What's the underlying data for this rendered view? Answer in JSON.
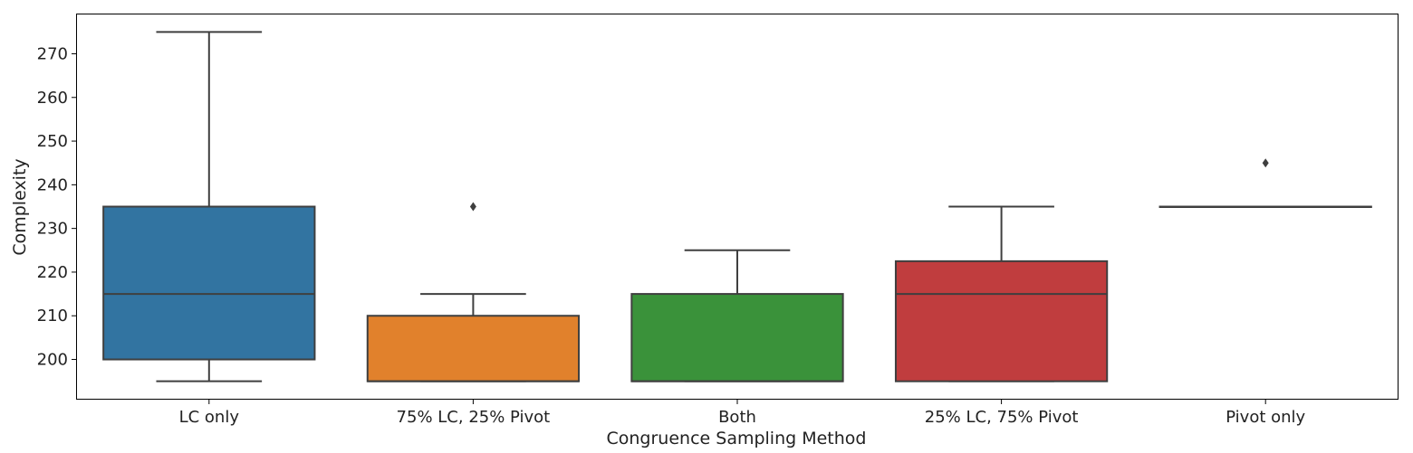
{
  "chart_data": {
    "type": "box",
    "xlabel": "Congruence Sampling Method",
    "ylabel": "Complexity",
    "ylim": [
      191,
      279
    ],
    "yticks": [
      200,
      210,
      220,
      230,
      240,
      250,
      260,
      270
    ],
    "grid": false,
    "categories": [
      "LC only",
      "75% LC, 25% Pivot",
      "Both",
      "25% LC, 75% Pivot",
      "Pivot only"
    ],
    "boxes": [
      {
        "category": "LC only",
        "whisker_low": 195,
        "q1": 200,
        "median": 215,
        "q3": 235,
        "whisker_high": 275,
        "outliers": [],
        "color": "#3274a1"
      },
      {
        "category": "75% LC, 25% Pivot",
        "whisker_low": 195,
        "q1": 195,
        "median": 195,
        "q3": 210,
        "whisker_high": 215,
        "outliers": [
          235
        ],
        "color": "#e1812c"
      },
      {
        "category": "Both",
        "whisker_low": 195,
        "q1": 195,
        "median": 195,
        "q3": 215,
        "whisker_high": 225,
        "outliers": [],
        "color": "#3a923a"
      },
      {
        "category": "25% LC, 75% Pivot",
        "whisker_low": 195,
        "q1": 195,
        "median": 215,
        "q3": 222.5,
        "whisker_high": 235,
        "outliers": [],
        "color": "#c03d3e"
      },
      {
        "category": "Pivot only",
        "whisker_low": 235,
        "q1": 235,
        "median": 235,
        "q3": 235,
        "whisker_high": 235,
        "outliers": [
          245
        ],
        "color": "#9372b2"
      }
    ]
  }
}
